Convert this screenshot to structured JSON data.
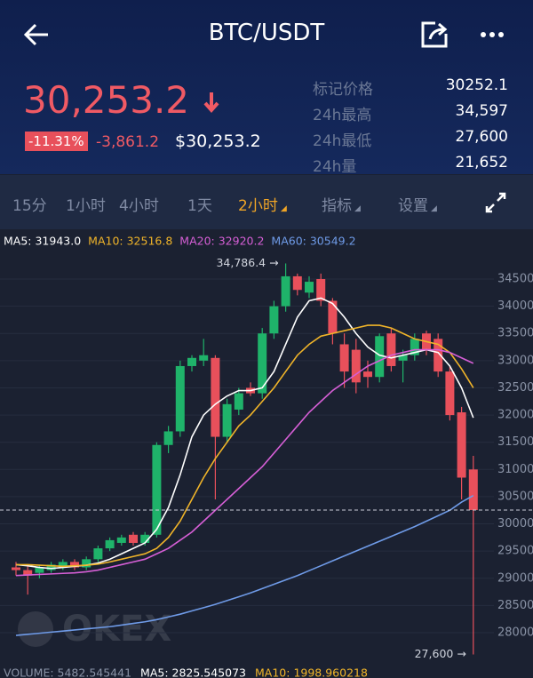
{
  "header": {
    "title": "BTC/USDT"
  },
  "price": {
    "last": "30,253.2",
    "change_percent": "-11.31%",
    "change": "-3,861.2",
    "usd": "$30,253.2"
  },
  "stats": [
    {
      "label": "标记价格",
      "value": "30252.1"
    },
    {
      "label": "24h最高",
      "value": "34,597"
    },
    {
      "label": "24h最低",
      "value": "27,600"
    },
    {
      "label": "24h量",
      "value": "21,652"
    }
  ],
  "tabs": [
    "15分",
    "1小时",
    "4小时",
    "1天",
    "2小时",
    "指标",
    "设置"
  ],
  "active_tab": "2小时",
  "chart_data": {
    "type": "candlestick",
    "up_color": "#1fb36a",
    "down_color": "#e8505b",
    "ylim": [
      27850,
      34800
    ],
    "yticks": [
      34500,
      34000,
      33500,
      33000,
      32500,
      32000,
      31500,
      31000,
      30500,
      30000,
      29500,
      29000,
      28500,
      28000
    ],
    "last_price": 30253.2,
    "open": [
      29200,
      29150,
      29100,
      29150,
      29200,
      29300,
      29200,
      29350,
      29550,
      29650,
      29800,
      29650,
      29800,
      31450,
      31700,
      32900,
      33000,
      33050,
      31600,
      32100,
      32500,
      32400,
      33500,
      34000,
      34550,
      34250,
      34500,
      34100,
      33300,
      33200,
      32800,
      32700,
      33500,
      33000,
      33100,
      33500,
      33400,
      32800,
      32050,
      31000
    ],
    "high": [
      29300,
      29250,
      29250,
      29300,
      29350,
      29350,
      29400,
      29600,
      29750,
      29800,
      29850,
      29850,
      31500,
      31800,
      33000,
      33100,
      33400,
      33100,
      32300,
      32500,
      32600,
      33600,
      34100,
      34786.4,
      34600,
      34550,
      34600,
      34150,
      33500,
      33400,
      33000,
      33500,
      33600,
      33200,
      33500,
      33550,
      33500,
      32900,
      32150,
      31250
    ],
    "low": [
      29050,
      28700,
      29000,
      29100,
      29150,
      29150,
      29150,
      29300,
      29500,
      29600,
      29600,
      29600,
      29750,
      31300,
      31600,
      32800,
      32900,
      30450,
      31500,
      32000,
      32350,
      32300,
      33400,
      33900,
      34200,
      34150,
      34000,
      33300,
      32500,
      32400,
      32500,
      32600,
      32800,
      32600,
      33000,
      33100,
      32700,
      31900,
      30450,
      27600
    ],
    "close": [
      29150,
      29050,
      29200,
      29250,
      29300,
      29200,
      29350,
      29550,
      29700,
      29750,
      29650,
      29800,
      31450,
      31700,
      32900,
      33050,
      33100,
      31600,
      32200,
      32400,
      32400,
      33500,
      34000,
      34550,
      34300,
      34450,
      34100,
      33500,
      32800,
      32600,
      32700,
      33450,
      32900,
      33100,
      33400,
      33200,
      32800,
      32000,
      30850,
      30253.2
    ],
    "series": [
      {
        "label": "MA5: 31943.0",
        "color": "#ffffff",
        "values": [
          29250,
          29230,
          29200,
          29180,
          29200,
          29220,
          29240,
          29280,
          29350,
          29450,
          29550,
          29650,
          29900,
          30300,
          30900,
          31600,
          32000,
          32200,
          32350,
          32450,
          32450,
          32500,
          32800,
          33300,
          33800,
          34100,
          34150,
          34050,
          33800,
          33500,
          33250,
          33100,
          33050,
          33100,
          33150,
          33200,
          33150,
          32900,
          32500,
          31950
        ]
      },
      {
        "label": "MA10: 32516.8",
        "color": "#f0b429",
        "values": [
          29250,
          29250,
          29240,
          29230,
          29220,
          29230,
          29240,
          29260,
          29300,
          29350,
          29400,
          29450,
          29550,
          29750,
          30050,
          30450,
          30850,
          31200,
          31500,
          31800,
          32000,
          32250,
          32500,
          32800,
          33100,
          33300,
          33450,
          33500,
          33550,
          33600,
          33650,
          33650,
          33600,
          33500,
          33400,
          33350,
          33300,
          33150,
          32850,
          32500
        ]
      },
      {
        "label": "MA20: 32920.2",
        "color": "#d65fd6",
        "values": [
          29050,
          29060,
          29070,
          29080,
          29090,
          29100,
          29120,
          29150,
          29200,
          29250,
          29300,
          29350,
          29450,
          29550,
          29700,
          29850,
          30050,
          30250,
          30450,
          30650,
          30850,
          31050,
          31300,
          31550,
          31800,
          32050,
          32250,
          32450,
          32600,
          32750,
          32900,
          33000,
          33100,
          33150,
          33200,
          33200,
          33200,
          33150,
          33050,
          32950
        ]
      },
      {
        "label": "MA60: 30549.2",
        "color": "#6f9be8",
        "values": [
          27950,
          27970,
          27990,
          28010,
          28030,
          28050,
          28070,
          28090,
          28110,
          28140,
          28170,
          28200,
          28240,
          28290,
          28340,
          28400,
          28460,
          28520,
          28590,
          28660,
          28730,
          28810,
          28890,
          28970,
          29050,
          29140,
          29230,
          29320,
          29410,
          29500,
          29590,
          29680,
          29770,
          29860,
          29950,
          30050,
          30150,
          30250,
          30400,
          30520
        ]
      }
    ],
    "annotations": [
      {
        "text": "34,786.4 →",
        "value": 34786.4,
        "index": 23
      },
      {
        "text": "27,600 →",
        "value": 27600,
        "index": 39
      }
    ],
    "volume_legend": [
      "VOLUME: 5482.545441",
      "MA5: 2825.545073",
      "MA10: 1998.960218"
    ],
    "watermark": "OKEX"
  }
}
